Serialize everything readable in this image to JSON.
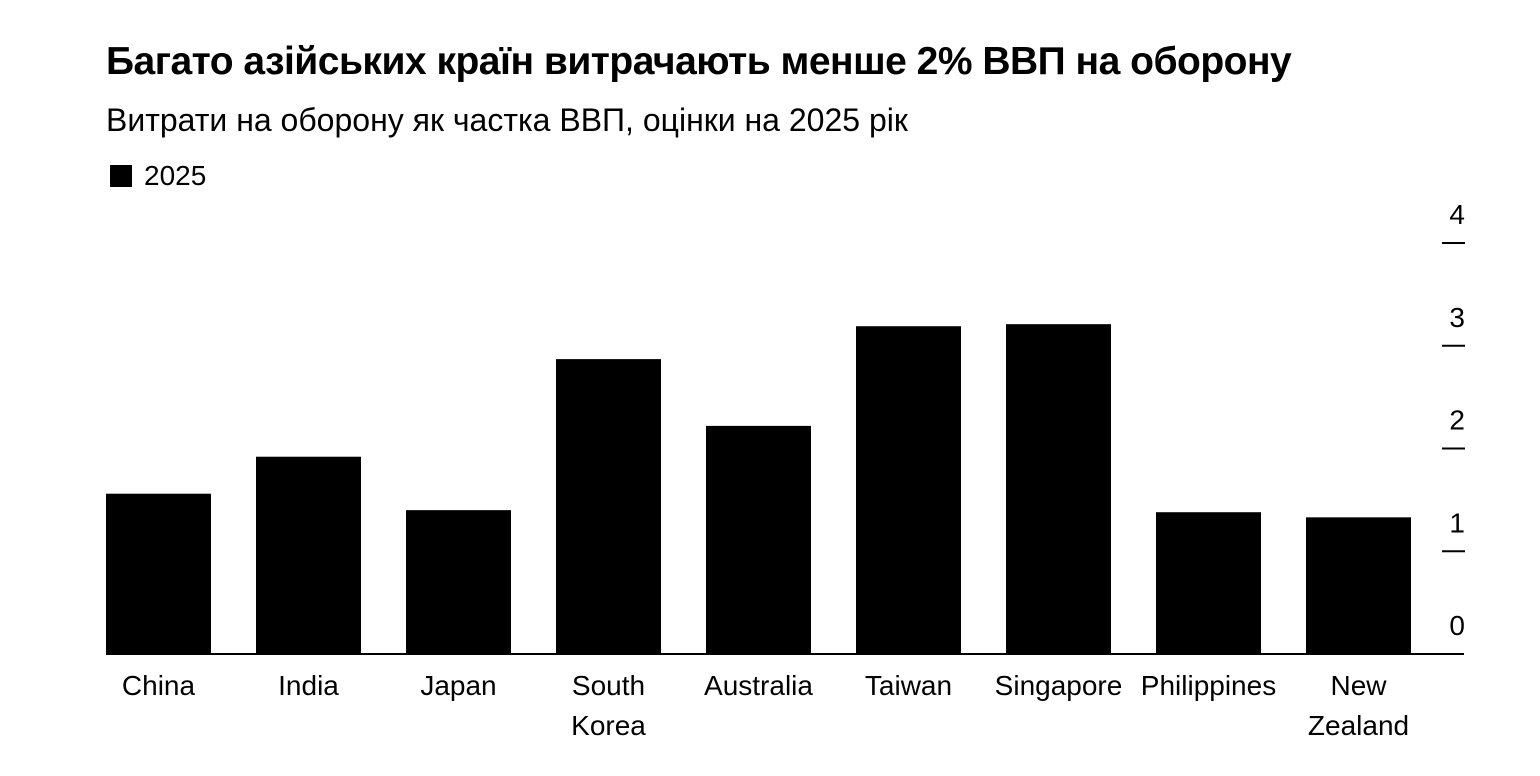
{
  "chart_data": {
    "type": "bar",
    "title": "Багато азійських країн витрачають менше 2% ВВП на оборону",
    "subtitle": "Витрати на оборону як частка ВВП, оцінки на 2025 рік",
    "xlabel": "",
    "ylabel": "",
    "categories": [
      [
        "China"
      ],
      [
        "India"
      ],
      [
        "Japan"
      ],
      [
        "South",
        "Korea"
      ],
      [
        "Australia"
      ],
      [
        "Taiwan"
      ],
      [
        "Singapore"
      ],
      [
        "Philippines"
      ],
      [
        "New",
        "Zealand"
      ]
    ],
    "series": [
      {
        "name": "2025",
        "color": "#000000",
        "values": [
          1.56,
          1.92,
          1.4,
          2.87,
          2.22,
          3.19,
          3.21,
          1.38,
          1.33
        ]
      }
    ],
    "ylim": [
      0,
      4
    ],
    "yticks": [
      "0",
      "1",
      "2",
      "3",
      "4"
    ],
    "y_axis_position": "right",
    "grid": false,
    "legend_position": "top-left"
  }
}
